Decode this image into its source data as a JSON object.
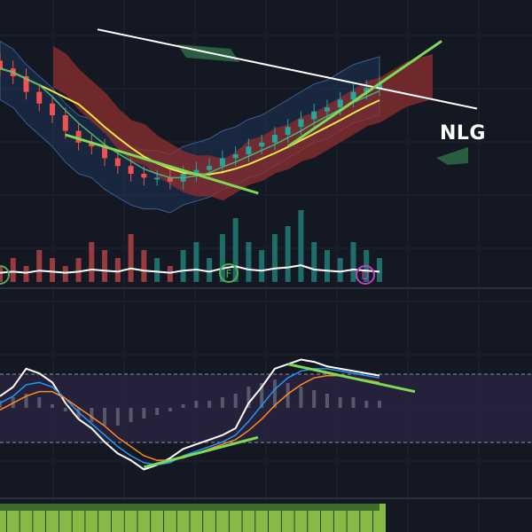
{
  "ticker": "NLG",
  "colors": {
    "background": "#141823",
    "grid": "#1f2433",
    "candle_up": "#26a69a",
    "candle_down": "#ef5350",
    "cloud_bear": "#8e2f2f",
    "cloud_bull": "#2f6b45",
    "bollinger_fill": "#1e3a5f",
    "sma_long": "#ffffff",
    "ema_mid": "#f0e44a",
    "trend_line": "#7ed957",
    "stoch_k": "#ffffff",
    "stoch_blue": "#2196f3",
    "stoch_orange": "#ff8a1e",
    "osc_band": "#2a2440",
    "volume_line": "#ffffff",
    "signal_green": "#4caf50",
    "signal_purple": "#c040c0",
    "bottom_strip": "#9bd64b"
  },
  "signal_markers": [
    "F",
    "D"
  ],
  "chart_data": [
    {
      "type": "candlestick",
      "panel": "price",
      "overlays": [
        "bollinger-bands",
        "ichimoku-cloud",
        "moving-average-long",
        "moving-average-mid"
      ],
      "close": [
        72,
        70,
        66,
        63,
        60,
        56,
        53,
        52,
        49,
        47,
        45,
        44,
        44,
        43,
        45,
        46,
        47,
        49,
        50,
        52,
        53,
        55,
        57,
        59,
        61,
        62,
        64,
        66,
        67,
        68
      ],
      "trendlines": [
        {
          "name": "price-down",
          "from": [
            5,
            55
          ],
          "to": [
            15,
            40
          ]
        },
        {
          "name": "price-up",
          "from": [
            22,
            52
          ],
          "to": [
            29,
            79
          ]
        }
      ]
    },
    {
      "type": "bar",
      "panel": "volume",
      "values": [
        2,
        3,
        2,
        4,
        3,
        2,
        3,
        5,
        4,
        3,
        6,
        4,
        3,
        2,
        4,
        5,
        3,
        6,
        8,
        5,
        4,
        6,
        7,
        9,
        5,
        4,
        3,
        5,
        4,
        3
      ]
    },
    {
      "type": "line",
      "panel": "oscillator",
      "series": [
        {
          "values": [
            58,
            62,
            70,
            68,
            64,
            55,
            48,
            44,
            38,
            33,
            30,
            26,
            28,
            31,
            35,
            37,
            39,
            41,
            44,
            55,
            62,
            70,
            72,
            74,
            73,
            71,
            70,
            69,
            68,
            67
          ]
        },
        {
          "values": [
            55,
            58,
            63,
            64,
            62,
            57,
            51,
            46,
            41,
            36,
            32,
            29,
            28,
            29,
            32,
            34,
            36,
            38,
            41,
            47,
            54,
            61,
            66,
            69,
            70,
            70,
            69,
            68,
            67,
            66
          ]
        },
        {
          "values": [
            52,
            55,
            58,
            60,
            60,
            57,
            53,
            49,
            45,
            40,
            36,
            32,
            30,
            30,
            31,
            33,
            35,
            37,
            39,
            43,
            48,
            54,
            59,
            63,
            66,
            67,
            67,
            66,
            65,
            64
          ]
        }
      ],
      "histogram": [
        2,
        3,
        4,
        3,
        1,
        -1,
        -3,
        -4,
        -5,
        -5,
        -4,
        -3,
        -2,
        -1,
        1,
        2,
        2,
        3,
        4,
        6,
        7,
        8,
        7,
        6,
        5,
        4,
        3,
        3,
        2,
        2
      ],
      "trendlines": [
        {
          "name": "osc-up",
          "from": [
            11,
            27
          ],
          "to": [
            17,
            40
          ]
        },
        {
          "name": "osc-down",
          "from": [
            22,
            72
          ],
          "to": [
            29,
            60
          ]
        }
      ]
    },
    {
      "type": "bar",
      "panel": "bottom-strip",
      "values": [
        3,
        3,
        3,
        3,
        3,
        3,
        3,
        3,
        3,
        3,
        3,
        3,
        3,
        3,
        3,
        3,
        3,
        3,
        3,
        3,
        3,
        3,
        3,
        3,
        3,
        3,
        3,
        3,
        3,
        3
      ]
    }
  ]
}
